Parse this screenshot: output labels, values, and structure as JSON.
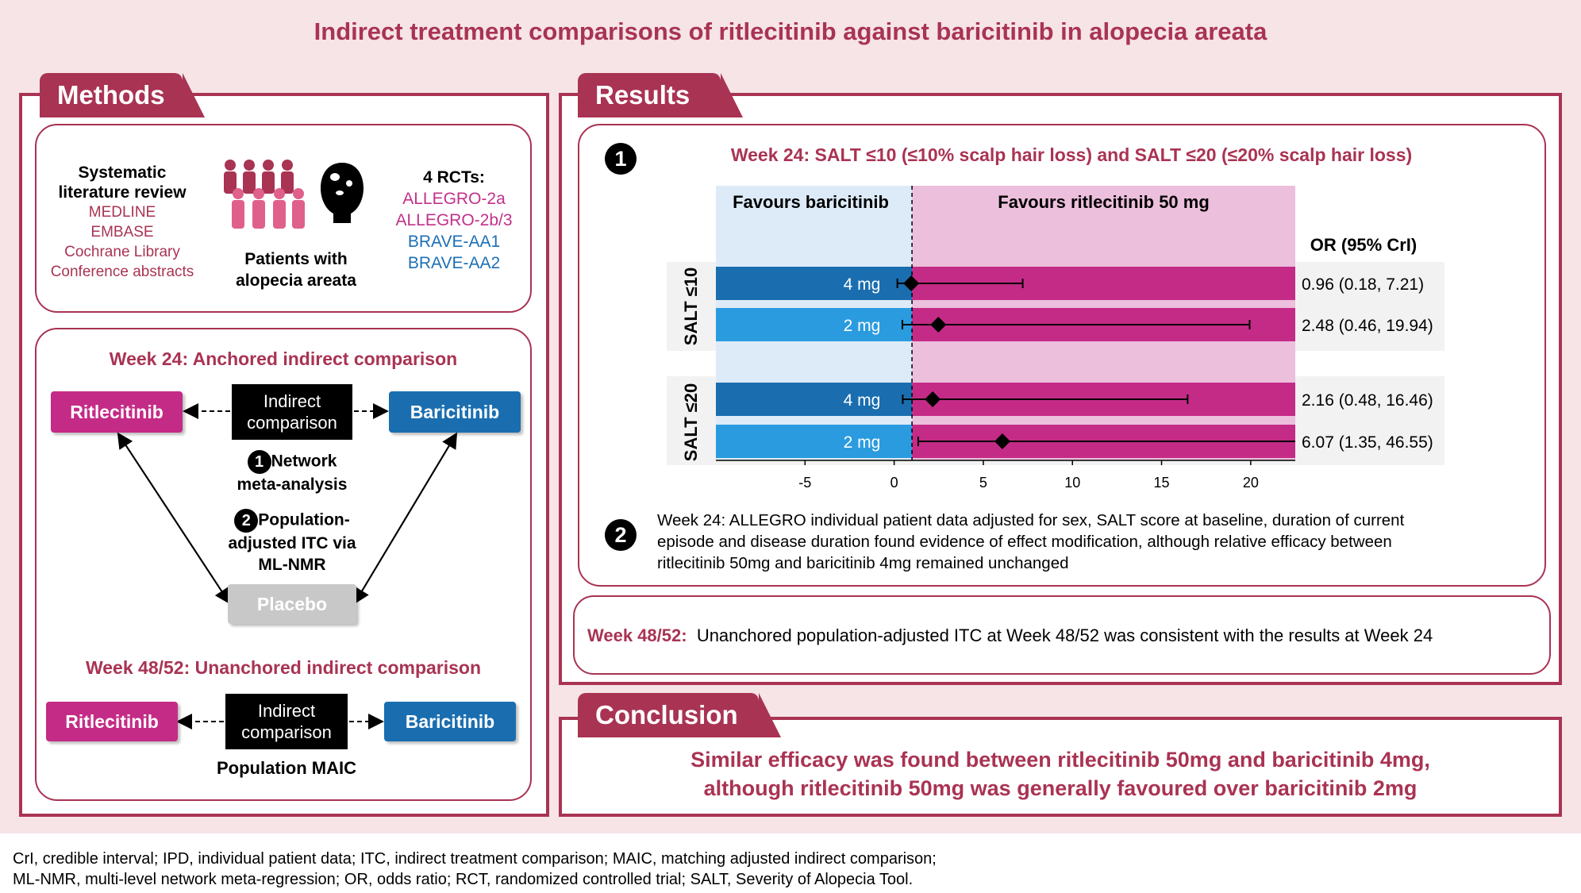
{
  "title": "Indirect treatment comparisons of ritlecitinib against baricitinib in alopecia areata",
  "methods": {
    "tab": "Methods",
    "slr": {
      "title_line1": "Systematic",
      "title_line2": "literature review",
      "sources": [
        "MEDLINE",
        "EMBASE",
        "Cochrane Library",
        "Conference abstracts"
      ]
    },
    "patients": {
      "line1": "Patients with",
      "line2": "alopecia areata"
    },
    "rcts": {
      "title": "4 RCTs:",
      "items": [
        "ALLEGRO-2a",
        "ALLEGRO-2b/3",
        "BRAVE-AA1",
        "BRAVE-AA2"
      ]
    },
    "anchored": {
      "heading": "Week 24: Anchored indirect comparison",
      "left": "Ritlecitinib",
      "center_line1": "Indirect",
      "center_line2": "comparison",
      "right": "Baricitinib",
      "m1_num": "1",
      "m1_line1": "Network",
      "m1_line2": "meta-analysis",
      "m2_num": "2",
      "m2_line1": "Population-",
      "m2_line2": "adjusted ITC via",
      "m2_line3": "ML-NMR",
      "placebo": "Placebo"
    },
    "unanchored": {
      "heading": "Week 48/52: Unanchored indirect comparison",
      "left": "Ritlecitinib",
      "center_line1": "Indirect",
      "center_line2": "comparison",
      "right": "Baricitinib",
      "method": "Population MAIC"
    }
  },
  "results": {
    "tab": "Results",
    "r1_num": "1",
    "r1_heading": "Week 24: SALT ≤10 (≤10% scalp hair loss) and SALT ≤20 (≤20% scalp hair loss)",
    "r2_num": "2",
    "r2_line1": "Week 24: ALLEGRO individual patient data adjusted for sex, SALT score at baseline, duration of current",
    "r2_line2": "episode and disease duration found evidence of effect modification, although relative efficacy between",
    "r2_line3": "ritlecitinib 50mg and baricitinib 4mg remained unchanged",
    "week48_label": "Week 48/52:",
    "week48_text": "Unanchored population-adjusted ITC at Week 48/52 was consistent with the results at Week 24"
  },
  "chart_data": {
    "type": "forest",
    "favours_left": "Favours baricitinib",
    "favours_right": "Favours ritlecitinib 50 mg",
    "or_header": "OR (95% CrI)",
    "xlim": [
      -10,
      22.5
    ],
    "reference_line": 1,
    "ticks": [
      -5,
      0,
      5,
      10,
      15,
      20
    ],
    "tick_labels": [
      "-5",
      "0",
      "5",
      "10",
      "15",
      "20"
    ],
    "groups": [
      {
        "label": "SALT ≤10",
        "rows": [
          {
            "dose": "4 mg",
            "or": 0.96,
            "low": 0.18,
            "high": 7.21,
            "text": "0.96 (0.18, 7.21)"
          },
          {
            "dose": "2 mg",
            "or": 2.48,
            "low": 0.46,
            "high": 19.94,
            "text": "2.48 (0.46, 19.94)"
          }
        ]
      },
      {
        "label": "SALT ≤20",
        "rows": [
          {
            "dose": "4 mg",
            "or": 2.16,
            "low": 0.48,
            "high": 16.46,
            "text": "2.16 (0.48, 16.46)"
          },
          {
            "dose": "2 mg",
            "or": 6.07,
            "low": 1.35,
            "high": 46.55,
            "text": "6.07 (1.35, 46.55)"
          }
        ]
      }
    ],
    "colors": {
      "dark_blue": "#1a6eb0",
      "light_blue": "#2b9be0",
      "magenta": "#c42b86",
      "bg_blue": "#dcebf7",
      "bg_pink": "#ecbfdc"
    }
  },
  "conclusion": {
    "tab": "Conclusion",
    "line1": "Similar efficacy was found between ritlecitinib 50mg and baricitinib 4mg,",
    "line2": "although ritlecitinib 50mg was generally favoured over baricitinib 2mg"
  },
  "footnote": {
    "line1": "CrI, credible interval; IPD, individual patient data; ITC, indirect treatment comparison; MAIC, matching adjusted indirect comparison;",
    "line2": "ML-NMR, multi-level network meta-regression; OR, odds ratio; RCT, randomized controlled trial; SALT, Severity of Alopecia Tool."
  },
  "colors": {
    "accent": "#a93353",
    "pill_pink": "#c42b86",
    "pill_blue": "#1a6eb0",
    "placebo": "#c8c8c8"
  }
}
